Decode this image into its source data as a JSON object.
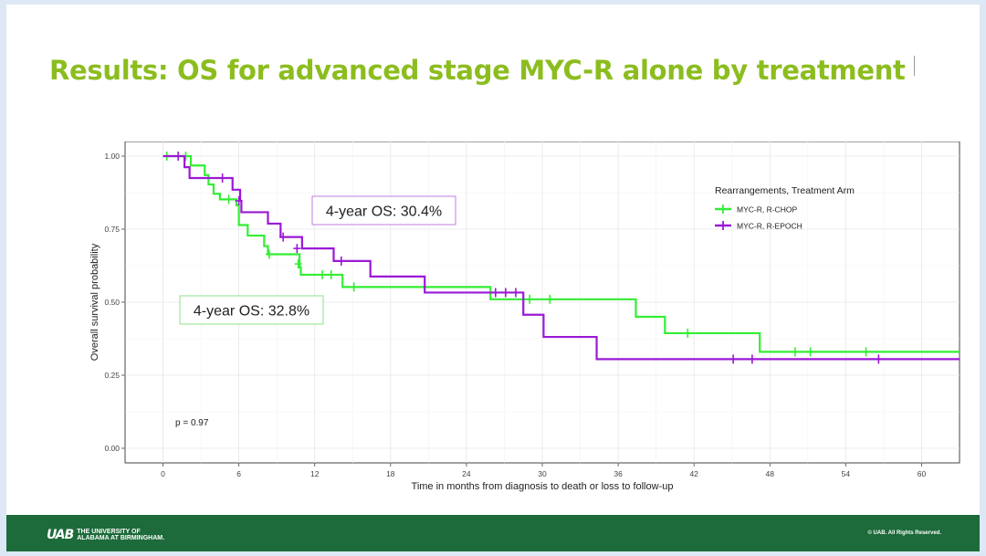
{
  "slide_title": "Results: OS for advanced stage MYC-R alone by treatment",
  "footer": {
    "logo_mark": "UAB",
    "logo_line1": "THE UNIVERSITY OF",
    "logo_line2": "ALABAMA AT BIRMINGHAM.",
    "copyright": "© UAB. All Rights Reserved."
  },
  "colors": {
    "title": "#8cbd1f",
    "rchop": "#33ee33",
    "repoch": "#9b19d6",
    "footer": "#1d6b3a"
  },
  "chart_data": {
    "type": "line",
    "subtype": "kaplan-meier step",
    "xlabel": "Time in months from diagnosis to death or loss to follow-up",
    "ylabel": "Overall survival probability",
    "xlim": [
      -3,
      63
    ],
    "ylim": [
      -0.05,
      1.05
    ],
    "xticks": [
      0,
      6,
      12,
      18,
      24,
      30,
      36,
      42,
      48,
      54,
      60
    ],
    "yticks": [
      0.0,
      0.25,
      0.5,
      0.75,
      1.0
    ],
    "ytick_labels": [
      "0.00",
      "0.25",
      "0.50",
      "0.75",
      "1.00"
    ],
    "grid": true,
    "legend": {
      "title": "Rearrangements, Treatment Arm",
      "position": "top-right"
    },
    "series": [
      {
        "name": "MYC-R, R-CHOP",
        "color": "#33ee33",
        "steps": [
          [
            0,
            1.0
          ],
          [
            2.2,
            0.968
          ],
          [
            3.3,
            0.935
          ],
          [
            3.6,
            0.903
          ],
          [
            4.0,
            0.871
          ],
          [
            4.5,
            0.852
          ],
          [
            5.8,
            0.832
          ],
          [
            6.0,
            0.764
          ],
          [
            6.7,
            0.728
          ],
          [
            8.0,
            0.692
          ],
          [
            8.3,
            0.664
          ],
          [
            10.8,
            0.62
          ],
          [
            10.9,
            0.594
          ],
          [
            14.2,
            0.552
          ],
          [
            25.9,
            0.51
          ],
          [
            37.4,
            0.45
          ],
          [
            39.7,
            0.394
          ],
          [
            47.2,
            0.33
          ],
          [
            63,
            0.33
          ]
        ],
        "censors": [
          [
            0.3,
            1.0
          ],
          [
            1.8,
            1.0
          ],
          [
            5.2,
            0.852
          ],
          [
            8.4,
            0.664
          ],
          [
            10.7,
            0.631
          ],
          [
            12.6,
            0.594
          ],
          [
            13.3,
            0.594
          ],
          [
            15.1,
            0.552
          ],
          [
            29.0,
            0.51
          ],
          [
            30.6,
            0.51
          ],
          [
            41.5,
            0.394
          ],
          [
            50.0,
            0.33
          ],
          [
            51.2,
            0.33
          ],
          [
            55.6,
            0.33
          ]
        ]
      },
      {
        "name": "MYC-R, R-EPOCH",
        "color": "#9b19d6",
        "steps": [
          [
            0,
            1.0
          ],
          [
            1.7,
            0.962
          ],
          [
            2.1,
            0.925
          ],
          [
            5.5,
            0.885
          ],
          [
            6.1,
            0.847
          ],
          [
            6.2,
            0.808
          ],
          [
            8.3,
            0.769
          ],
          [
            9.3,
            0.723
          ],
          [
            11.0,
            0.684
          ],
          [
            13.5,
            0.641
          ],
          [
            16.4,
            0.588
          ],
          [
            20.7,
            0.533
          ],
          [
            28.5,
            0.457
          ],
          [
            30.1,
            0.381
          ],
          [
            34.3,
            0.305
          ],
          [
            63,
            0.305
          ]
        ],
        "censors": [
          [
            1.2,
            1.0
          ],
          [
            4.7,
            0.925
          ],
          [
            6.0,
            0.847
          ],
          [
            9.5,
            0.723
          ],
          [
            10.6,
            0.684
          ],
          [
            14.1,
            0.641
          ],
          [
            26.3,
            0.533
          ],
          [
            27.1,
            0.533
          ],
          [
            27.9,
            0.533
          ],
          [
            45.1,
            0.305
          ],
          [
            46.6,
            0.305
          ],
          [
            56.6,
            0.305
          ]
        ]
      }
    ],
    "annotations": [
      {
        "id": "repoch_os",
        "text": "4-year OS: 30.4%",
        "color": "#9b19d6"
      },
      {
        "id": "rchop_os",
        "text": "4-year OS: 32.8%",
        "color": "#33ee33"
      },
      {
        "id": "pvalue",
        "text": "p = 0.97"
      }
    ]
  }
}
